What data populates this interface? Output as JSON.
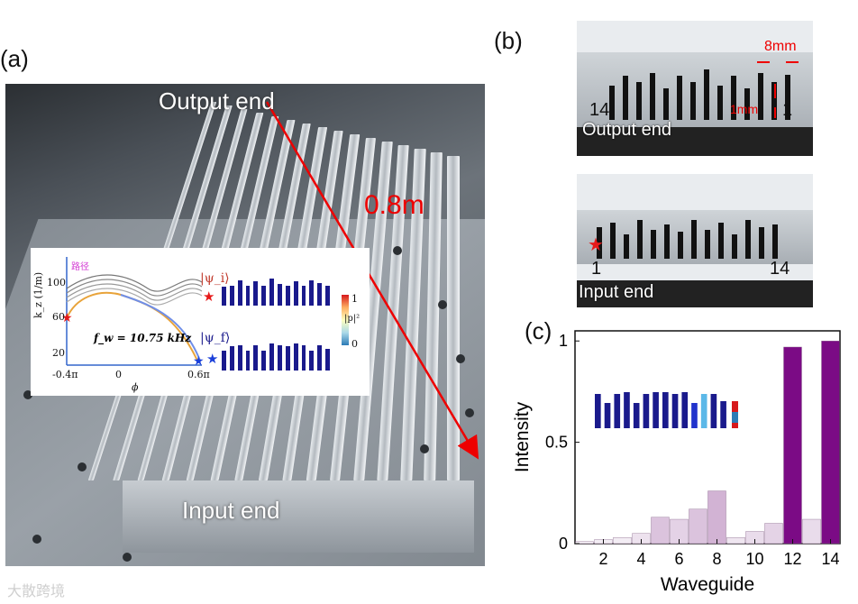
{
  "panel_labels": {
    "a": "(a)",
    "b": "(b)",
    "c": "(c)"
  },
  "panel_a": {
    "output_end": "Output end",
    "input_end": "Input end",
    "length": "0.8m",
    "inset": {
      "legend_label": "路径",
      "ylabel": "k_z (1/m)",
      "xlabel": "ϕ",
      "yticks": [
        "100",
        "60",
        "20"
      ],
      "xticks": [
        "-0.4π",
        "0",
        "0.6π"
      ],
      "frequency": "f_w = 10.75 kHz",
      "psi_i": "|ψ_i⟩",
      "psi_f": "|ψ_f⟩",
      "colorbar_max": "1",
      "colorbar_min": "0",
      "colorbar_label": "|p|²",
      "colors": {
        "initial_star": "#e61919",
        "final_star": "#1a3fd9",
        "bar_fill": "#1a1a8c",
        "psi_i_color": "#c0392b",
        "psi_f_color": "#1a1a8c",
        "legend_color": "#d33ad3"
      },
      "psi_i_bars": [
        0.7,
        0.75,
        0.95,
        0.75,
        0.9,
        0.75,
        1.0,
        0.8,
        0.75,
        0.9,
        0.75,
        0.95,
        0.85,
        0.75
      ],
      "psi_f_bars": [
        0.75,
        0.9,
        0.95,
        0.75,
        0.95,
        0.75,
        1.0,
        0.95,
        0.9,
        1.0,
        0.95,
        0.75,
        0.95,
        0.8
      ]
    }
  },
  "panel_b": {
    "output_end": "Output end",
    "input_end": "Input end",
    "gap_label": "8mm",
    "width_label": "1mm",
    "output_left_index": "14",
    "output_right_index": "1",
    "input_left_index": "1",
    "input_right_index": "14",
    "output_bar_heights": [
      0.55,
      0.7,
      0.6,
      0.75,
      0.5,
      0.7,
      0.6,
      0.8,
      0.55,
      0.7,
      0.5,
      0.75,
      0.6,
      0.72
    ],
    "input_bar_heights": [
      0.65,
      0.75,
      0.5,
      0.8,
      0.6,
      0.7,
      0.55,
      0.8,
      0.6,
      0.75,
      0.5,
      0.8,
      0.65,
      0.7
    ]
  },
  "chart_data": {
    "type": "bar",
    "xlabel": "Waveguide",
    "ylabel": "Intensity",
    "categories": [
      1,
      2,
      3,
      4,
      5,
      6,
      7,
      8,
      9,
      10,
      11,
      12,
      13,
      14
    ],
    "values": [
      0.01,
      0.02,
      0.03,
      0.05,
      0.13,
      0.12,
      0.17,
      0.26,
      0.03,
      0.06,
      0.1,
      0.97,
      0.12,
      1.0
    ],
    "bar_colors": [
      "#f3edf4",
      "#f3edf4",
      "#f3edf4",
      "#ede2ee",
      "#dbc3dd",
      "#e4d2e6",
      "#dbc3dd",
      "#d2b3d4",
      "#efe6f0",
      "#e9dceb",
      "#e4d3e6",
      "#7b0b85",
      "#e9dceb",
      "#7b0b85"
    ],
    "ylim": [
      0,
      1.05
    ],
    "xlim": [
      0.5,
      14.5
    ],
    "xticks": [
      2,
      4,
      6,
      8,
      10,
      12,
      14
    ],
    "yticks": [
      0,
      0.5,
      1
    ],
    "ytick_labels": [
      "0",
      "0.5",
      "1"
    ],
    "inset_bar_heights": [
      0.95,
      0.7,
      0.95,
      1.0,
      0.7,
      0.95,
      1.0,
      1.0,
      0.95,
      1.0,
      0.7,
      0.95,
      0.95,
      0.75
    ]
  },
  "watermark": "大散跨境"
}
